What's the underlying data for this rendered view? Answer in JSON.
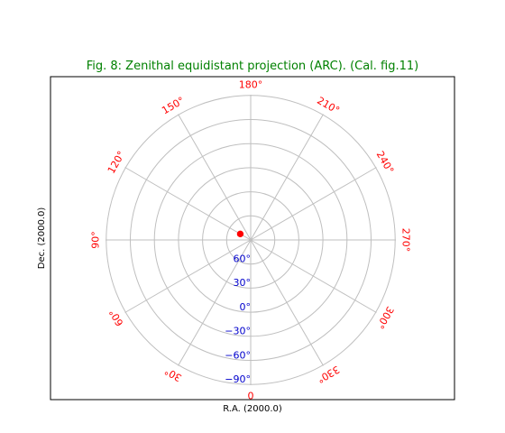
{
  "chart_data": {
    "type": "scatter",
    "title": "Fig. 8: Zenithal equidistant projection (ARC). (Cal. fig.11)",
    "xlabel": "R.A. (2000.0)",
    "ylabel": "Dec. (2000.0)",
    "grid": true,
    "ra_ticks": [
      "0",
      "30°",
      "60°",
      "90°",
      "120°",
      "150°",
      "180°",
      "210°",
      "240°",
      "270°",
      "300°",
      "330°"
    ],
    "dec_ticks": [
      "60°",
      "30°",
      "0°",
      "−30°",
      "−60°",
      "−90°"
    ],
    "points": [
      {
        "ra": 120,
        "dec": 75
      }
    ],
    "colors": {
      "title": "#008000",
      "ra_ticks": "#ff0000",
      "dec_ticks": "#0000cc",
      "grid": "#bfbfbf",
      "marker": "#ff0000"
    }
  }
}
